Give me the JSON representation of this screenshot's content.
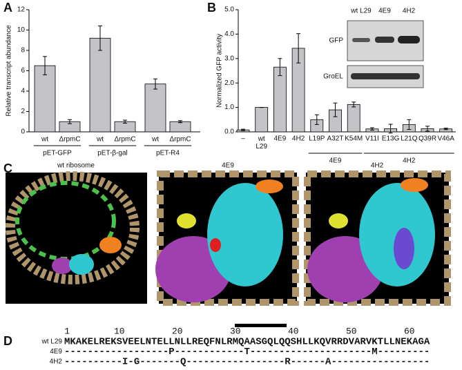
{
  "chart_data": [
    {
      "type": "bar",
      "ylabel": "Relative transcript abundance",
      "color": "#c4c4c8",
      "ylim": [
        0,
        12
      ],
      "yticks": [
        0,
        2,
        4,
        6,
        8,
        10,
        12
      ],
      "groups": [
        {
          "name": "pET-GFP",
          "categories": [
            "wt",
            "ΔrpmC"
          ],
          "values": [
            6.5,
            1.0
          ],
          "errors": [
            0.9,
            0.2
          ]
        },
        {
          "name": "pET-β-gal",
          "categories": [
            "wt",
            "ΔrpmC"
          ],
          "values": [
            9.2,
            1.0
          ],
          "errors": [
            1.2,
            0.15
          ]
        },
        {
          "name": "pET-R4",
          "categories": [
            "wt",
            "ΔrpmC"
          ],
          "values": [
            4.7,
            1.0
          ],
          "errors": [
            0.5,
            0.1
          ]
        }
      ]
    },
    {
      "type": "bar",
      "ylabel": "Normalized GFP activity",
      "color": "#c4c4c8",
      "ylim": [
        0,
        5
      ],
      "yticks": [
        {
          "value": 0,
          "label": "0.0"
        },
        {
          "value": 1,
          "label": "1.0"
        },
        {
          "value": 2,
          "label": "2.0"
        },
        {
          "value": 3,
          "label": "3.0"
        },
        {
          "value": 4,
          "label": "4.0"
        },
        {
          "value": 5,
          "label": "5.0"
        }
      ],
      "groups": [
        {
          "name": null,
          "categories": [
            "–",
            "wt L29",
            "4E9",
            "4H2"
          ],
          "values": [
            0.08,
            1.0,
            2.65,
            3.42
          ],
          "errors": [
            0.03,
            0,
            0.35,
            0.6
          ]
        },
        {
          "name": "4E9",
          "categories": [
            "L19P",
            "A32T",
            "K54M"
          ],
          "values": [
            0.5,
            0.9,
            1.12
          ],
          "errors": [
            0.2,
            0.28,
            0.1
          ]
        },
        {
          "name": "4H2",
          "categories": [
            "V11I",
            "E13G",
            "L21Q",
            "Q39R",
            "V46A"
          ],
          "values": [
            0.12,
            0.13,
            0.3,
            0.13,
            0.12
          ],
          "errors": [
            0.05,
            0.18,
            0.2,
            0.1,
            0.03
          ]
        }
      ]
    }
  ],
  "panel_labels": [
    "A",
    "B",
    "C",
    "D"
  ],
  "blot": {
    "lanes": [
      "wt L29",
      "4E9",
      "4H2"
    ],
    "rows": [
      "GFP",
      "GroEL"
    ]
  },
  "structures": {
    "titles": [
      "wt ribosome",
      "4E9",
      "4H2"
    ]
  },
  "sequence": {
    "ruler": [
      1,
      10,
      20,
      30,
      40,
      50,
      60
    ],
    "rows": [
      {
        "name": "wt L29",
        "seq": "MKAKELREKSVEELNTELLNLLREQFNLRMQAASGQLQQSHLLKQVRRDVARVKTLLNEKAGA"
      },
      {
        "name": "4E9",
        "seq": "------------------P------------T---------------------M---------"
      },
      {
        "name": "4H2",
        "seq": "----------I-G-------Q-----------------R------A-----------------"
      }
    ]
  }
}
